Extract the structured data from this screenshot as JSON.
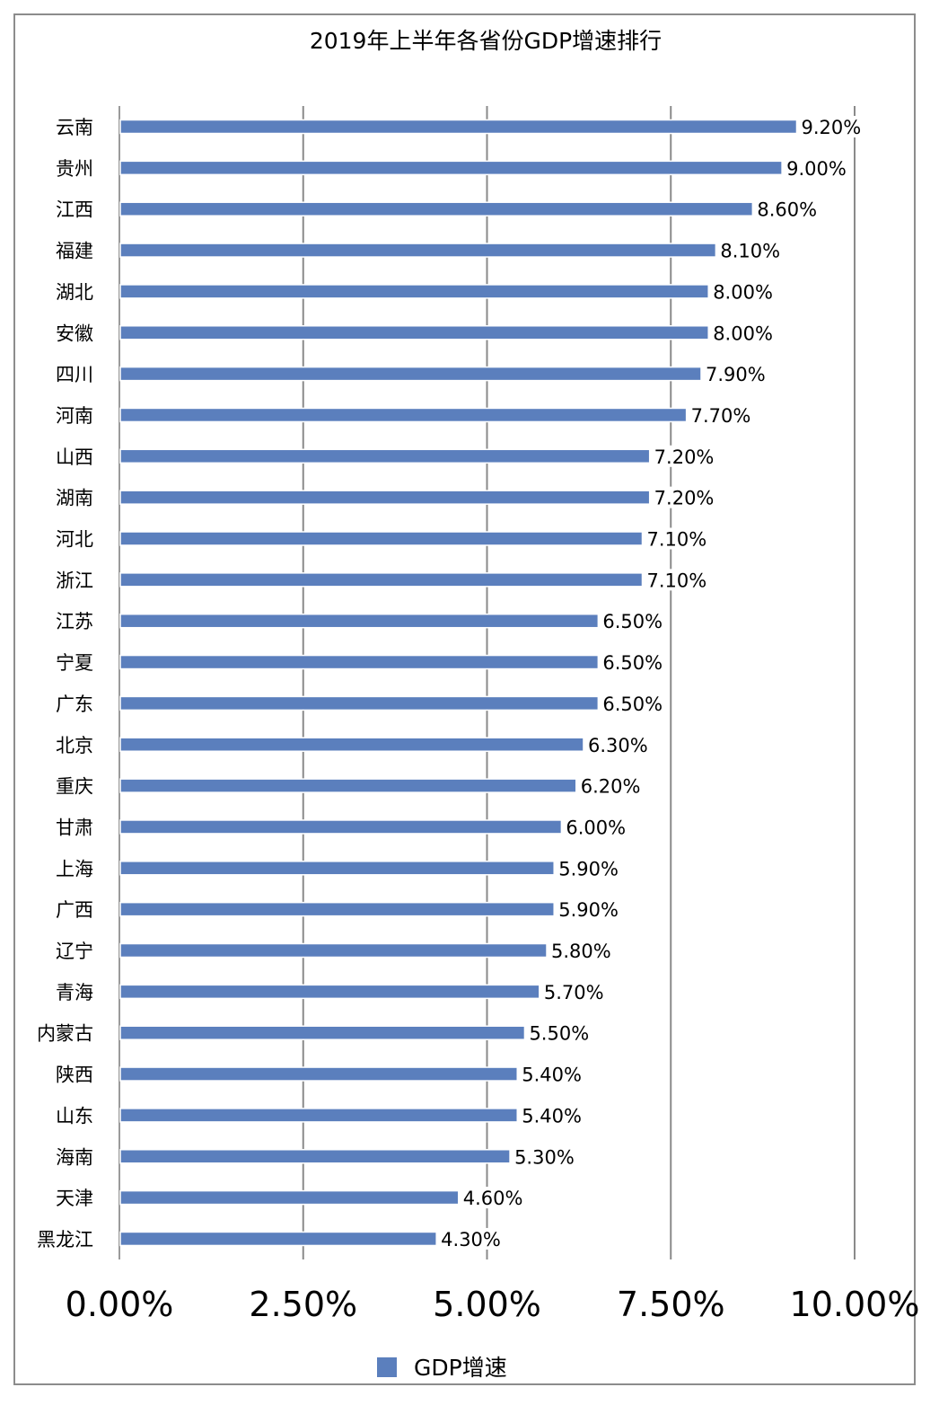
{
  "chart_data": {
    "type": "bar",
    "orientation": "horizontal",
    "title": "2019年上半年各省份GDP增速排行",
    "categories": [
      "云南",
      "贵州",
      "江西",
      "福建",
      "湖北",
      "安徽",
      "四川",
      "河南",
      "山西",
      "湖南",
      "河北",
      "浙江",
      "江苏",
      "宁夏",
      "广东",
      "北京",
      "重庆",
      "甘肃",
      "上海",
      "广西",
      "辽宁",
      "青海",
      "内蒙古",
      "陕西",
      "山东",
      "海南",
      "天津",
      "黑龙江"
    ],
    "series": [
      {
        "name": "GDP增速",
        "values": [
          9.2,
          9.0,
          8.6,
          8.1,
          8.0,
          8.0,
          7.9,
          7.7,
          7.2,
          7.2,
          7.1,
          7.1,
          6.5,
          6.5,
          6.5,
          6.3,
          6.2,
          6.0,
          5.9,
          5.9,
          5.8,
          5.7,
          5.5,
          5.4,
          5.4,
          5.3,
          4.6,
          4.3
        ],
        "data_labels": [
          "9.20%",
          "9.00%",
          "8.60%",
          "8.10%",
          "8.00%",
          "8.00%",
          "7.90%",
          "7.70%",
          "7.20%",
          "7.20%",
          "7.10%",
          "7.10%",
          "6.50%",
          "6.50%",
          "6.50%",
          "6.30%",
          "6.20%",
          "6.00%",
          "5.90%",
          "5.90%",
          "5.80%",
          "5.70%",
          "5.50%",
          "5.40%",
          "5.40%",
          "5.30%",
          "4.60%",
          "4.30%"
        ]
      }
    ],
    "x_ticks": [
      0,
      2.5,
      5,
      7.5,
      10
    ],
    "x_tick_labels": [
      "0.00%",
      "2.50%",
      "5.00%",
      "7.50%",
      "10.00%"
    ],
    "xlim": [
      0,
      10
    ],
    "grid": "vertical",
    "legend": "bottom",
    "colors": {
      "bar": "#5b7fbd",
      "grid": "#8a8a8a",
      "text": "#000000"
    }
  }
}
